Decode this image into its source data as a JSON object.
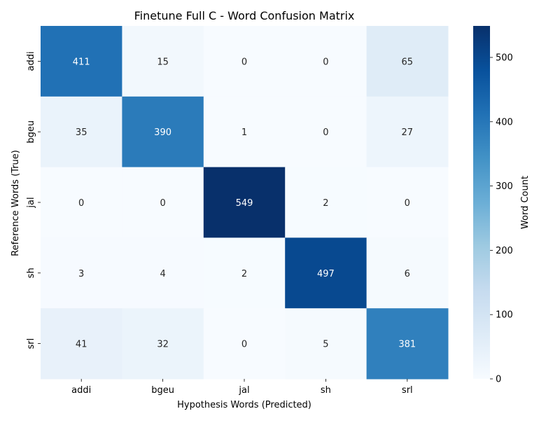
{
  "chart_data": {
    "type": "heatmap",
    "title": "Finetune Full C - Word Confusion Matrix",
    "xlabel": "Hypothesis Words (Predicted)",
    "ylabel": "Reference Words (True)",
    "x_categories": [
      "addi",
      "bgeu",
      "jal",
      "sh",
      "srl"
    ],
    "y_categories": [
      "addi",
      "bgeu",
      "jal",
      "sh",
      "srl"
    ],
    "values": [
      [
        411,
        15,
        0,
        0,
        65
      ],
      [
        35,
        390,
        1,
        0,
        27
      ],
      [
        0,
        0,
        549,
        2,
        0
      ],
      [
        3,
        4,
        2,
        497,
        6
      ],
      [
        41,
        32,
        0,
        5,
        381
      ]
    ],
    "colorbar": {
      "label": "Word Count",
      "min": 0,
      "max": 549,
      "ticks": [
        "0",
        "100",
        "200",
        "300",
        "400",
        "500"
      ],
      "colormap": "Blues"
    },
    "grid": false,
    "legend": "colorbar-right"
  }
}
